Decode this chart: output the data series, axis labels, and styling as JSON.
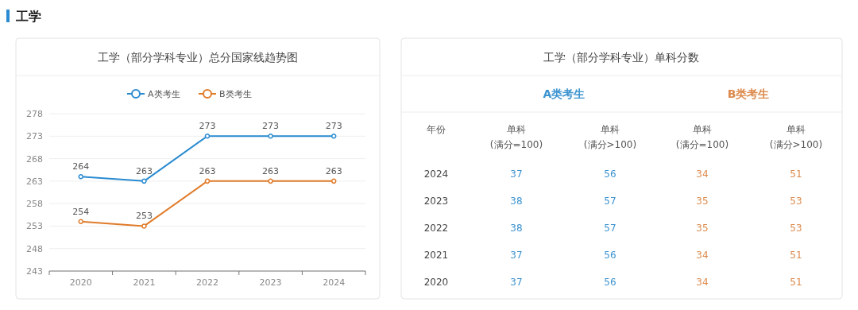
{
  "chart_data": [
    {
      "type": "line",
      "title": "工学（部分学科专业）总分国家线趋势图",
      "annotations": [
        "工学"
      ],
      "categories": [
        "2020",
        "2021",
        "2022",
        "2023",
        "2024"
      ],
      "series": [
        {
          "name": "A类考生",
          "color": "#2a8bd0",
          "values": [
            264,
            263,
            273,
            273,
            273
          ]
        },
        {
          "name": "B类考生",
          "color": "#e07b2a",
          "values": [
            254,
            253,
            263,
            263,
            263
          ]
        }
      ],
      "ylim": [
        243,
        278
      ],
      "yticks": [
        243,
        248,
        253,
        258,
        263,
        268,
        273,
        278
      ],
      "grid": "y",
      "legend": "top",
      "marker": "circle",
      "data_labels": true
    },
    {
      "type": "heatmap",
      "title": "工学（部分学科专业）单科分数",
      "ylabel": "年份",
      "annotations": [
        "A类考生",
        "B类考生"
      ],
      "categories": [
        "单科(满分=100)",
        "单科(满分>100)",
        "单科(满分=100)",
        "单科(满分>100)"
      ],
      "y_categories": [
        "2024",
        "2023",
        "2022",
        "2021",
        "2020"
      ],
      "colors": [
        "#3c93d0",
        "#3c93d0",
        "#dc8a4c",
        "#dc8a4c"
      ],
      "data_labels": true,
      "cells": [
        [
          37,
          56,
          34,
          51
        ],
        [
          38,
          57,
          35,
          53
        ],
        [
          38,
          57,
          35,
          53
        ],
        [
          37,
          56,
          34,
          51
        ],
        [
          37,
          56,
          34,
          51
        ]
      ]
    }
  ]
}
